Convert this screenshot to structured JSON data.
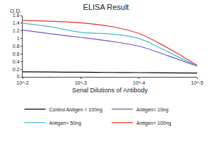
{
  "chart_data": {
    "type": "line",
    "title": "ELISA Result",
    "x_label": "Serial Dilutions of Antibody",
    "y_label": "O.D.",
    "x": [
      0.01,
      0.00316,
      0.001,
      0.000316,
      0.0001,
      3.16e-05,
      1e-05
    ],
    "series": [
      {
        "name": "Control Antigen = 100ng",
        "color": "#000000",
        "values": [
          0.13,
          0.125,
          0.12,
          0.115,
          0.11,
          0.105,
          0.1
        ]
      },
      {
        "name": "Antigen= 10ng",
        "color": "#7b4fc8",
        "values": [
          1.22,
          1.12,
          1.03,
          0.93,
          0.8,
          0.55,
          0.28
        ]
      },
      {
        "name": "Antigen= 50ng",
        "color": "#3cc0c8",
        "values": [
          1.4,
          1.3,
          1.16,
          1.12,
          1.0,
          0.65,
          0.28
        ]
      },
      {
        "name": "Antigen= 100ng",
        "color": "#e0302a",
        "values": [
          1.47,
          1.45,
          1.41,
          1.32,
          1.13,
          0.75,
          0.3
        ]
      }
    ],
    "log": "x",
    "xlim": [
      0.01,
      1e-05
    ],
    "xticks": [
      {
        "value": 0.01,
        "label": "10^-2"
      },
      {
        "value": 0.001,
        "label": "10^-3"
      },
      {
        "value": 0.0001,
        "label": "10^-4"
      },
      {
        "value": 1e-05,
        "label": "10^-5"
      }
    ],
    "ylim": [
      0,
      1.6
    ],
    "yticks": [
      0,
      0.2,
      0.4,
      0.6,
      0.8,
      1,
      1.2,
      1.4,
      1.6
    ],
    "grid": false,
    "legend": "bottom"
  }
}
